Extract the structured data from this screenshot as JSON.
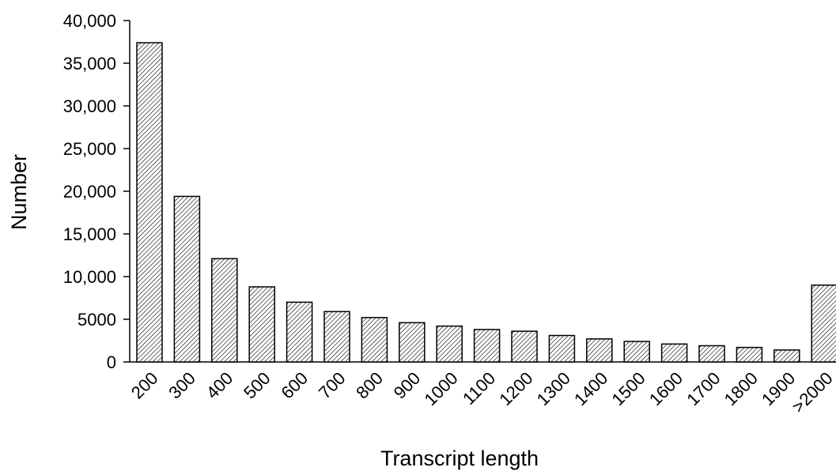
{
  "chart_data": {
    "type": "bar",
    "title": "",
    "xlabel": "Transcript length",
    "ylabel": "Number",
    "categories": [
      "200",
      "300",
      "400",
      "500",
      "600",
      "700",
      "800",
      "900",
      "1000",
      "1100",
      "1200",
      "1300",
      "1400",
      "1500",
      "1600",
      "1700",
      "1800",
      "1900",
      ">2000"
    ],
    "values": [
      37400,
      19400,
      12100,
      8800,
      7000,
      5900,
      5200,
      4600,
      4200,
      3800,
      3600,
      3100,
      2700,
      2400,
      2100,
      1900,
      1700,
      1400,
      9000
    ],
    "ylim": [
      0,
      40000
    ],
    "yticks": [
      {
        "value": 0,
        "label": "0"
      },
      {
        "value": 5000,
        "label": "5000"
      },
      {
        "value": 10000,
        "label": "10,000"
      },
      {
        "value": 15000,
        "label": "15,000"
      },
      {
        "value": 20000,
        "label": "20,000"
      },
      {
        "value": 25000,
        "label": "25,000"
      },
      {
        "value": 30000,
        "label": "30,000"
      },
      {
        "value": 35000,
        "label": "35,000"
      },
      {
        "value": 40000,
        "label": "40,000"
      }
    ],
    "grid": false,
    "legend": "none",
    "bar_fill": "diagonal-hatch",
    "colors": {
      "stroke": "#000000",
      "background": "#ffffff"
    }
  }
}
